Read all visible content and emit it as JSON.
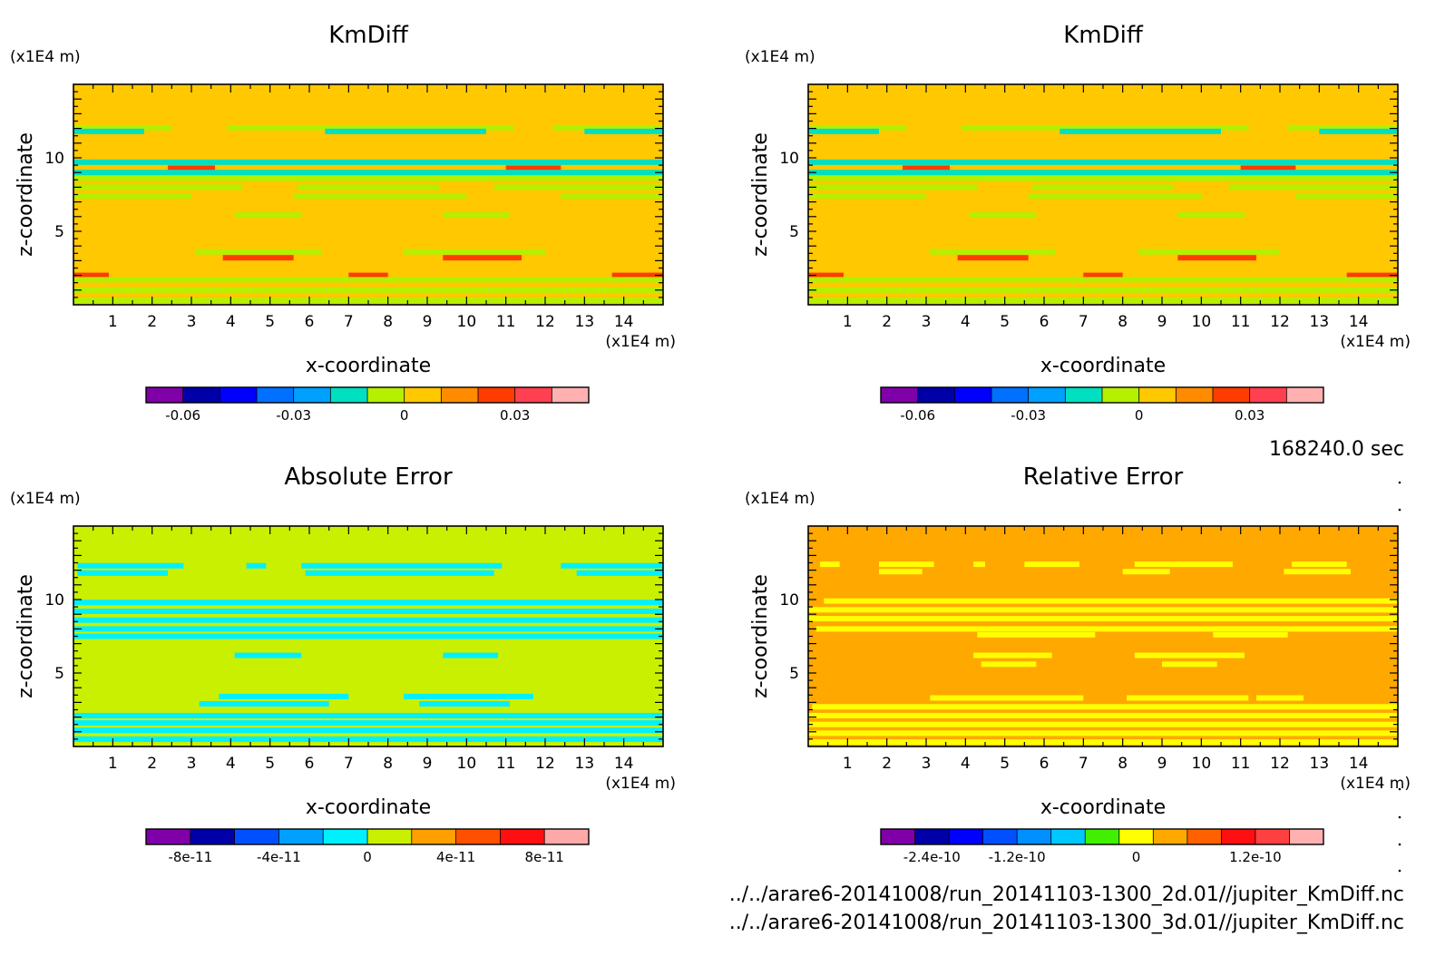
{
  "figure": {
    "time_label": "168240.0 sec",
    "files": [
      "../../arare6-20141008/run_20141103-1300_2d.01//jupiter_KmDiff.nc",
      "../../arare6-20141008/run_20141103-1300_3d.01//jupiter_KmDiff.nc"
    ]
  },
  "chart_data": [
    {
      "type": "heatmap",
      "title": "KmDiff",
      "xlabel": "x-coordinate",
      "ylabel": "z-coordinate",
      "x_unit": "(x1E4 m)",
      "y_unit": "(x1E4 m)",
      "xlim": [
        0,
        15
      ],
      "ylim": [
        0,
        15
      ],
      "xticks": [
        1,
        2,
        3,
        4,
        5,
        6,
        7,
        8,
        9,
        10,
        11,
        12,
        13,
        14
      ],
      "yticks": [
        5,
        10
      ],
      "background_color": "#ffc800",
      "colorbar": {
        "colors": [
          "#7f00a8",
          "#0000a8",
          "#0000ff",
          "#0070ff",
          "#00a0ff",
          "#00e0c0",
          "#b4f000",
          "#ffc800",
          "#ff8c00",
          "#ff3c00",
          "#ff4050",
          "#ffb0b0"
        ],
        "tick_labels": [
          "-0.06",
          "-0.03",
          "0",
          "0.03"
        ],
        "tick_boundaries": [
          1,
          4,
          7,
          10
        ]
      },
      "bands": [
        {
          "z": 12.05,
          "color": "#b4f000",
          "segments": [
            [
              0,
              2.5
            ],
            [
              3.9,
              11.2
            ],
            [
              12.2,
              15
            ]
          ]
        },
        {
          "z": 11.8,
          "color": "#00e0c0",
          "segments": [
            [
              0,
              1.8
            ],
            [
              6.4,
              10.5
            ],
            [
              13,
              15
            ]
          ]
        },
        {
          "z": 9.7,
          "color": "#00e0c0",
          "segments": [
            [
              0,
              15
            ]
          ]
        },
        {
          "z": 9.3,
          "color": "#ff3c00",
          "segments": [
            [
              2.4,
              3.6
            ],
            [
              11,
              12.4
            ]
          ]
        },
        {
          "z": 9.0,
          "color": "#00e0c0",
          "segments": [
            [
              0,
              15
            ]
          ]
        },
        {
          "z": 8.6,
          "color": "#b4f000",
          "segments": [
            [
              0,
              15
            ]
          ]
        },
        {
          "z": 8.0,
          "color": "#b4f000",
          "segments": [
            [
              0,
              4.3
            ],
            [
              5.7,
              9.3
            ],
            [
              10.7,
              15
            ]
          ]
        },
        {
          "z": 7.4,
          "color": "#b4f000",
          "segments": [
            [
              0,
              3
            ],
            [
              5.6,
              10
            ],
            [
              12.4,
              15
            ]
          ]
        },
        {
          "z": 6.1,
          "color": "#b4f000",
          "segments": [
            [
              4.1,
              5.8
            ],
            [
              9.4,
              11.1
            ]
          ]
        },
        {
          "z": 3.2,
          "color": "#ff3c00",
          "segments": [
            [
              3.8,
              5.6
            ],
            [
              9.4,
              11.4
            ]
          ]
        },
        {
          "z": 3.6,
          "color": "#b4f000",
          "segments": [
            [
              3.1,
              6.3
            ],
            [
              8.4,
              12
            ]
          ]
        },
        {
          "z": 2.0,
          "color": "#ff3c00",
          "segments": [
            [
              0,
              0.9
            ],
            [
              7,
              8
            ],
            [
              13.7,
              15
            ]
          ]
        },
        {
          "z": 1.7,
          "color": "#b4f000",
          "segments": [
            [
              0,
              15
            ]
          ]
        },
        {
          "z": 1.0,
          "color": "#b4f000",
          "segments": [
            [
              0,
              15
            ]
          ]
        },
        {
          "z": 0.3,
          "color": "#b4f000",
          "segments": [
            [
              0,
              15
            ]
          ]
        }
      ]
    },
    {
      "type": "heatmap",
      "title": "KmDiff",
      "xlabel": "x-coordinate",
      "ylabel": "z-coordinate",
      "x_unit": "(x1E4 m)",
      "y_unit": "(x1E4 m)",
      "xlim": [
        0,
        15
      ],
      "ylim": [
        0,
        15
      ],
      "xticks": [
        1,
        2,
        3,
        4,
        5,
        6,
        7,
        8,
        9,
        10,
        11,
        12,
        13,
        14
      ],
      "yticks": [
        5,
        10
      ],
      "background_color": "#ffc800",
      "colorbar": {
        "colors": [
          "#7f00a8",
          "#0000a8",
          "#0000ff",
          "#0070ff",
          "#00a0ff",
          "#00e0c0",
          "#b4f000",
          "#ffc800",
          "#ff8c00",
          "#ff3c00",
          "#ff4050",
          "#ffb0b0"
        ],
        "tick_labels": [
          "-0.06",
          "-0.03",
          "0",
          "0.03"
        ],
        "tick_boundaries": [
          1,
          4,
          7,
          10
        ]
      },
      "bands": [
        {
          "z": 12.05,
          "color": "#b4f000",
          "segments": [
            [
              0,
              2.5
            ],
            [
              3.9,
              11.2
            ],
            [
              12.2,
              15
            ]
          ]
        },
        {
          "z": 11.8,
          "color": "#00e0c0",
          "segments": [
            [
              0,
              1.8
            ],
            [
              6.4,
              10.5
            ],
            [
              13,
              15
            ]
          ]
        },
        {
          "z": 9.7,
          "color": "#00e0c0",
          "segments": [
            [
              0,
              15
            ]
          ]
        },
        {
          "z": 9.3,
          "color": "#ff3c00",
          "segments": [
            [
              2.4,
              3.6
            ],
            [
              11,
              12.4
            ]
          ]
        },
        {
          "z": 9.0,
          "color": "#00e0c0",
          "segments": [
            [
              0,
              15
            ]
          ]
        },
        {
          "z": 8.6,
          "color": "#b4f000",
          "segments": [
            [
              0,
              15
            ]
          ]
        },
        {
          "z": 8.0,
          "color": "#b4f000",
          "segments": [
            [
              0,
              4.3
            ],
            [
              5.7,
              9.3
            ],
            [
              10.7,
              15
            ]
          ]
        },
        {
          "z": 7.4,
          "color": "#b4f000",
          "segments": [
            [
              0,
              3
            ],
            [
              5.6,
              10
            ],
            [
              12.4,
              15
            ]
          ]
        },
        {
          "z": 6.1,
          "color": "#b4f000",
          "segments": [
            [
              4.1,
              5.8
            ],
            [
              9.4,
              11.1
            ]
          ]
        },
        {
          "z": 3.2,
          "color": "#ff3c00",
          "segments": [
            [
              3.8,
              5.6
            ],
            [
              9.4,
              11.4
            ]
          ]
        },
        {
          "z": 3.6,
          "color": "#b4f000",
          "segments": [
            [
              3.1,
              6.3
            ],
            [
              8.4,
              12
            ]
          ]
        },
        {
          "z": 2.0,
          "color": "#ff3c00",
          "segments": [
            [
              0,
              0.9
            ],
            [
              7,
              8
            ],
            [
              13.7,
              15
            ]
          ]
        },
        {
          "z": 1.7,
          "color": "#b4f000",
          "segments": [
            [
              0,
              15
            ]
          ]
        },
        {
          "z": 1.0,
          "color": "#b4f000",
          "segments": [
            [
              0,
              15
            ]
          ]
        },
        {
          "z": 0.3,
          "color": "#b4f000",
          "segments": [
            [
              0,
              15
            ]
          ]
        }
      ]
    },
    {
      "type": "heatmap",
      "title": "Absolute Error",
      "xlabel": "x-coordinate",
      "ylabel": "z-coordinate",
      "x_unit": "(x1E4 m)",
      "y_unit": "(x1E4 m)",
      "xlim": [
        0,
        15
      ],
      "ylim": [
        0,
        15
      ],
      "xticks": [
        1,
        2,
        3,
        4,
        5,
        6,
        7,
        8,
        9,
        10,
        11,
        12,
        13,
        14
      ],
      "yticks": [
        5,
        10
      ],
      "background_color": "#c8f000",
      "colorbar": {
        "colors": [
          "#7f00a8",
          "#0000a8",
          "#0050ff",
          "#00a0ff",
          "#00f0ff",
          "#c8f000",
          "#ffa000",
          "#ff5000",
          "#ff1010",
          "#ffa8a8"
        ],
        "tick_labels": [
          "-8e-11",
          "-4e-11",
          "0",
          "4e-11",
          "8e-11"
        ],
        "tick_boundaries": [
          1,
          3,
          5,
          7,
          9
        ]
      },
      "bands": [
        {
          "z": 12.3,
          "color": "#00f0ff",
          "segments": [
            [
              0.1,
              2.8
            ],
            [
              4.4,
              4.9
            ],
            [
              5.8,
              10.9
            ],
            [
              12.4,
              15
            ]
          ]
        },
        {
          "z": 11.8,
          "color": "#00f0ff",
          "segments": [
            [
              0.1,
              2.4
            ],
            [
              5.9,
              10.7
            ],
            [
              12.8,
              15
            ]
          ]
        },
        {
          "z": 9.8,
          "color": "#00f0ff",
          "segments": [
            [
              0,
              15
            ]
          ]
        },
        {
          "z": 9.2,
          "color": "#00f0ff",
          "segments": [
            [
              0,
              15
            ]
          ]
        },
        {
          "z": 8.6,
          "color": "#00f0ff",
          "segments": [
            [
              0,
              15
            ]
          ]
        },
        {
          "z": 8.0,
          "color": "#00f0ff",
          "segments": [
            [
              0,
              15
            ]
          ]
        },
        {
          "z": 7.5,
          "color": "#00f0ff",
          "segments": [
            [
              0,
              15
            ]
          ]
        },
        {
          "z": 6.2,
          "color": "#00f0ff",
          "segments": [
            [
              4.1,
              5.8
            ],
            [
              9.4,
              10.8
            ]
          ]
        },
        {
          "z": 3.4,
          "color": "#00f0ff",
          "segments": [
            [
              3.7,
              7
            ],
            [
              8.4,
              11.7
            ]
          ]
        },
        {
          "z": 2.9,
          "color": "#00f0ff",
          "segments": [
            [
              3.2,
              6.5
            ],
            [
              8.8,
              11.1
            ]
          ]
        },
        {
          "z": 2.1,
          "color": "#00f0ff",
          "segments": [
            [
              0,
              15
            ]
          ]
        },
        {
          "z": 1.6,
          "color": "#00f0ff",
          "segments": [
            [
              0,
              15
            ]
          ]
        },
        {
          "z": 1.1,
          "color": "#00f0ff",
          "segments": [
            [
              0,
              15
            ]
          ]
        },
        {
          "z": 0.5,
          "color": "#00f0ff",
          "segments": [
            [
              0,
              15
            ]
          ]
        }
      ]
    },
    {
      "type": "heatmap",
      "title": "Relative Error",
      "xlabel": "x-coordinate",
      "ylabel": "z-coordinate",
      "x_unit": "(x1E4 m)",
      "y_unit": "(x1E4 m)",
      "xlim": [
        0,
        15
      ],
      "ylim": [
        0,
        15
      ],
      "xticks": [
        1,
        2,
        3,
        4,
        5,
        6,
        7,
        8,
        9,
        10,
        11,
        12,
        13,
        14
      ],
      "yticks": [
        5,
        10
      ],
      "background_color": "#ffa800",
      "colorbar": {
        "colors": [
          "#7f00a8",
          "#0000a8",
          "#0000ff",
          "#0050ff",
          "#0090ff",
          "#00c8ff",
          "#40f000",
          "#ffff00",
          "#ffa800",
          "#ff6000",
          "#ff1010",
          "#ff4040",
          "#ffb0b0"
        ],
        "tick_labels": [
          "-2.4e-10",
          "-1.2e-10",
          "0",
          "1.2e-10"
        ],
        "tick_boundaries": [
          1.5,
          4,
          7.5,
          11
        ]
      },
      "bands": [
        {
          "z": 12.4,
          "color": "#ffff00",
          "segments": [
            [
              0.3,
              0.8
            ],
            [
              1.8,
              3.2
            ],
            [
              4.2,
              4.5
            ],
            [
              5.5,
              6.9
            ],
            [
              8.3,
              10.8
            ],
            [
              12.3,
              13.7
            ]
          ]
        },
        {
          "z": 11.9,
          "color": "#ffff00",
          "segments": [
            [
              1.8,
              2.9
            ],
            [
              8,
              9.2
            ],
            [
              12.1,
              13.8
            ]
          ]
        },
        {
          "z": 9.9,
          "color": "#ffff00",
          "segments": [
            [
              0.4,
              15
            ]
          ]
        },
        {
          "z": 9.3,
          "color": "#ffff00",
          "segments": [
            [
              0,
              15
            ]
          ]
        },
        {
          "z": 8.7,
          "color": "#ffff00",
          "segments": [
            [
              0,
              15
            ]
          ]
        },
        {
          "z": 8.0,
          "color": "#ffff00",
          "segments": [
            [
              0.2,
              15
            ]
          ]
        },
        {
          "z": 7.6,
          "color": "#ffff00",
          "segments": [
            [
              4.3,
              7.3
            ],
            [
              10.3,
              12.2
            ]
          ]
        },
        {
          "z": 6.2,
          "color": "#ffff00",
          "segments": [
            [
              4.2,
              6.2
            ],
            [
              8.3,
              11.1
            ]
          ]
        },
        {
          "z": 5.6,
          "color": "#ffff00",
          "segments": [
            [
              4.4,
              5.8
            ],
            [
              9,
              10.4
            ]
          ]
        },
        {
          "z": 3.3,
          "color": "#ffff00",
          "segments": [
            [
              3.1,
              7
            ],
            [
              8.1,
              11.2
            ],
            [
              11.4,
              12.6
            ]
          ]
        },
        {
          "z": 2.7,
          "color": "#ffff00",
          "segments": [
            [
              0.1,
              15
            ]
          ]
        },
        {
          "z": 2.1,
          "color": "#ffff00",
          "segments": [
            [
              0,
              15
            ]
          ]
        },
        {
          "z": 1.5,
          "color": "#ffff00",
          "segments": [
            [
              0,
              15
            ]
          ]
        },
        {
          "z": 0.9,
          "color": "#ffff00",
          "segments": [
            [
              0,
              15
            ]
          ]
        },
        {
          "z": 0.3,
          "color": "#ffff00",
          "segments": [
            [
              0,
              15
            ]
          ]
        }
      ]
    }
  ]
}
